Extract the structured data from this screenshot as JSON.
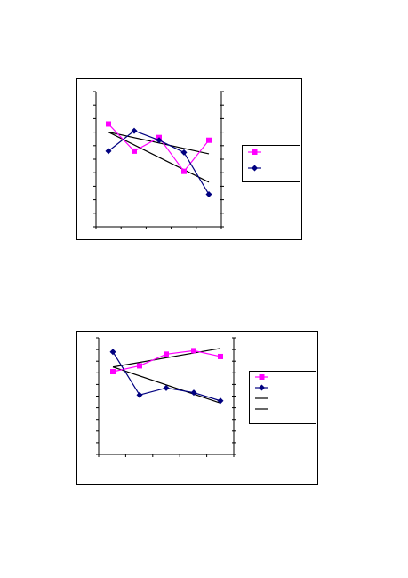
{
  "chart_data": [
    {
      "type": "line",
      "x": [
        1,
        2,
        3,
        4,
        5
      ],
      "ylim": [
        0,
        10
      ],
      "grid": false,
      "legend_placement": "right",
      "series": [
        {
          "values": [
            7.6,
            5.6,
            6.6,
            4.1,
            6.4
          ],
          "color": "#ff00ff",
          "marker": "square"
        },
        {
          "values": [
            5.6,
            7.1,
            6.4,
            5.5,
            2.4
          ],
          "color": "#000080",
          "marker": "diamond"
        }
      ],
      "trendlines": [
        {
          "values": [
            7.0,
            6.6,
            6.2,
            5.8,
            5.4
          ],
          "color": "#000000"
        },
        {
          "values": [
            7.0,
            6.0,
            5.1,
            4.2,
            3.3
          ],
          "color": "#000000"
        }
      ],
      "legend_entries": [
        {
          "kind": "series",
          "index": 0
        },
        {
          "kind": "series",
          "index": 1
        }
      ]
    },
    {
      "type": "line",
      "x": [
        1,
        2,
        3,
        4,
        5
      ],
      "ylim": [
        0,
        10
      ],
      "grid": false,
      "legend_placement": "right",
      "series": [
        {
          "values": [
            7.1,
            7.6,
            8.6,
            8.9,
            8.4
          ],
          "color": "#ff00ff",
          "marker": "square"
        },
        {
          "values": [
            8.8,
            5.1,
            5.7,
            5.3,
            4.6
          ],
          "color": "#000080",
          "marker": "diamond"
        }
      ],
      "trendlines": [
        {
          "values": [
            7.5,
            7.9,
            8.3,
            8.7,
            9.1
          ],
          "color": "#000000"
        },
        {
          "values": [
            7.5,
            6.7,
            5.9,
            5.2,
            4.4
          ],
          "color": "#000000"
        }
      ],
      "legend_entries": [
        {
          "kind": "series",
          "index": 0
        },
        {
          "kind": "series",
          "index": 1
        },
        {
          "kind": "trend",
          "index": 0
        },
        {
          "kind": "trend",
          "index": 1
        }
      ]
    }
  ]
}
